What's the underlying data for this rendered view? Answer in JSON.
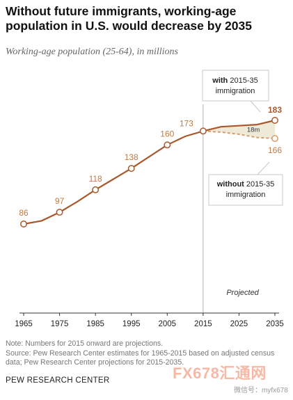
{
  "title": "Without future immigrants, working-age population in U.S. would decrease by 2035",
  "subtitle": "Working-age population (25-64), in millions",
  "chart_data": {
    "type": "line",
    "xlim": [
      1965,
      2035
    ],
    "ylim": [
      80,
      190
    ],
    "x_ticks": [
      "1965",
      "1975",
      "1985",
      "1995",
      "2005",
      "2015",
      "2025",
      "2035"
    ],
    "series": [
      {
        "name": "with 2015-35 immigration",
        "style": "solid",
        "color": "#a8582c",
        "points": [
          {
            "x": 1965,
            "y": 86
          },
          {
            "x": 1970,
            "y": 89
          },
          {
            "x": 1975,
            "y": 97
          },
          {
            "x": 1980,
            "y": 107
          },
          {
            "x": 1985,
            "y": 118
          },
          {
            "x": 1990,
            "y": 128
          },
          {
            "x": 1995,
            "y": 138
          },
          {
            "x": 2000,
            "y": 149
          },
          {
            "x": 2005,
            "y": 160
          },
          {
            "x": 2010,
            "y": 168
          },
          {
            "x": 2015,
            "y": 173
          },
          {
            "x": 2020,
            "y": 177
          },
          {
            "x": 2025,
            "y": 178
          },
          {
            "x": 2030,
            "y": 179
          },
          {
            "x": 2035,
            "y": 183
          }
        ]
      },
      {
        "name": "without 2015-35 immigration",
        "style": "dashed",
        "color": "#d89b6b",
        "points": [
          {
            "x": 2015,
            "y": 173
          },
          {
            "x": 2020,
            "y": 172
          },
          {
            "x": 2025,
            "y": 170
          },
          {
            "x": 2030,
            "y": 167
          },
          {
            "x": 2035,
            "y": 166
          }
        ]
      }
    ],
    "data_labels": [
      {
        "x": 1965,
        "y": 86,
        "text": "86"
      },
      {
        "x": 1975,
        "y": 97,
        "text": "97"
      },
      {
        "x": 1985,
        "y": 118,
        "text": "118"
      },
      {
        "x": 1995,
        "y": 138,
        "text": "138"
      },
      {
        "x": 2005,
        "y": 160,
        "text": "160"
      },
      {
        "x": 2015,
        "y": 173,
        "text": "173"
      },
      {
        "x": 2035,
        "y": 183,
        "text": "183",
        "series": "with"
      },
      {
        "x": 2035,
        "y": 166,
        "text": "166",
        "series": "without"
      }
    ],
    "gap_label": "18m",
    "projected_label": "Projected",
    "projection_start": 2015,
    "callouts": {
      "with": {
        "bold": "with",
        "rest": "2015-35",
        "line2": "immigration"
      },
      "without": {
        "bold": "without",
        "rest": "2015-35",
        "line2": "immigration"
      }
    },
    "colors": {
      "with_line": "#a8582c",
      "without_line": "#d89b6b",
      "label": "#c07a45",
      "shade": "#efe9d8",
      "divider": "#b0b0b0"
    }
  },
  "footer": {
    "note": "Note: Numbers for 2015 onward are projections.",
    "source": "Source: Pew Research Center estimates for 1965-2015 based on adjusted census data; Pew Research Center projections for 2015-2035."
  },
  "org": "PEW RESEARCH CENTER",
  "watermark": {
    "logo": "FX678汇通网",
    "id": "微信号：myfx678"
  }
}
